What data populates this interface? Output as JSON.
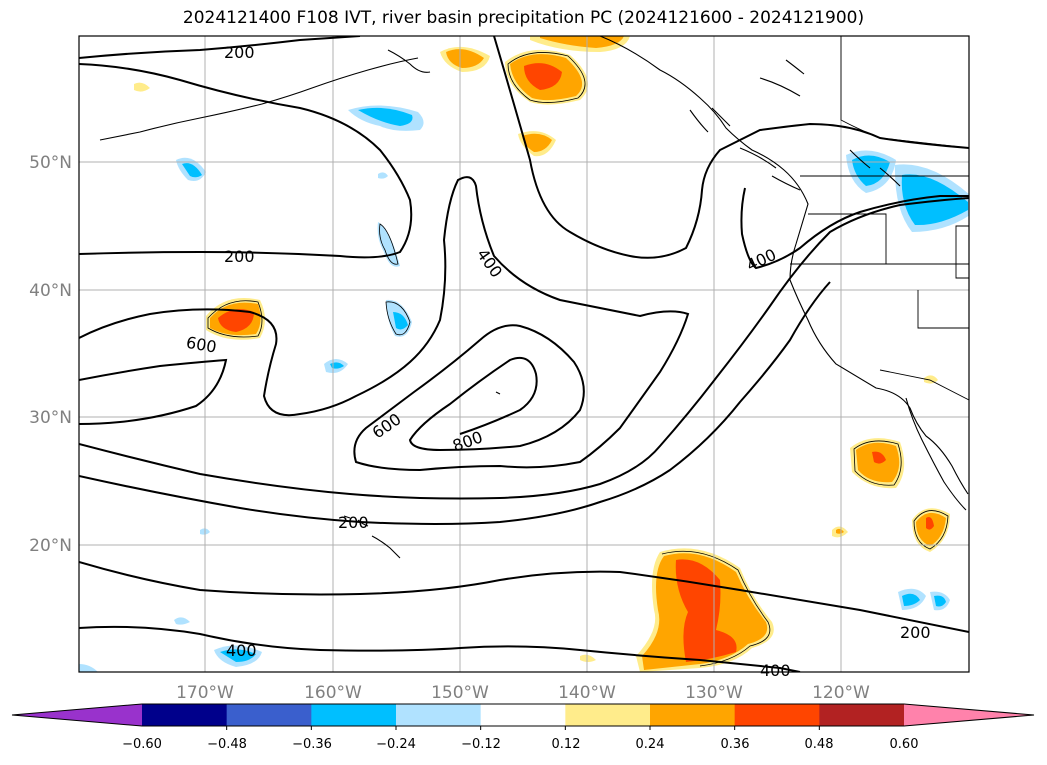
{
  "title": "2024121400 F108 IVT, river basin precipitation PC (2024121600 - 2024121900)",
  "map": {
    "lon_ticks": [
      "170°W",
      "160°W",
      "150°W",
      "140°W",
      "130°W",
      "120°W"
    ],
    "lat_ticks": [
      "50°N",
      "40°N",
      "30°N",
      "20°N"
    ],
    "grid": true,
    "contour_labels": [
      "200",
      "200",
      "200",
      "200",
      "400",
      "400",
      "400",
      "400",
      "600",
      "600",
      "800"
    ]
  },
  "colorbar": {
    "ticks": [
      "−0.60",
      "−0.48",
      "−0.36",
      "−0.24",
      "−0.12",
      "0.12",
      "0.24",
      "0.36",
      "0.48",
      "0.60"
    ],
    "colors": [
      "#9932cc",
      "#00008b",
      "#3a5fcd",
      "#00bfff",
      "#b0e2ff",
      "#ffffff",
      "#ffec8b",
      "#ffa500",
      "#ff4500",
      "#b22222",
      "#ff82ab"
    ]
  }
}
